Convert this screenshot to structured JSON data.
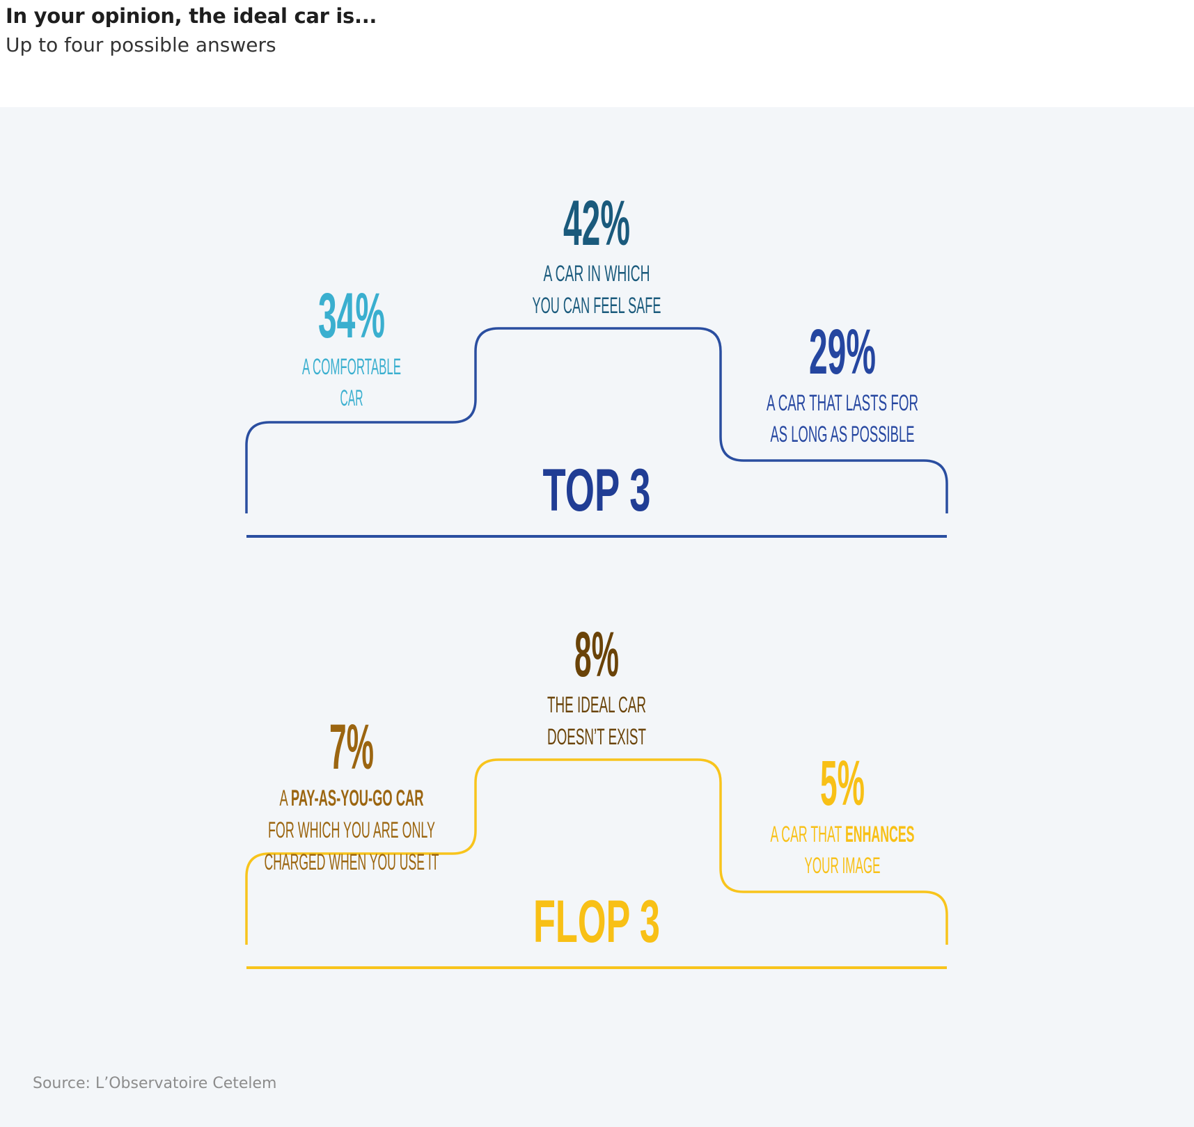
{
  "title": "In your opinion, the ideal car is...",
  "subtitle": "Up to four possible answers",
  "source": "Source: L’Observatoire Cetelem",
  "colors": {
    "top_stroke": "#2a4ea0",
    "top_heading": "#203d94",
    "top_first": "#1a5a7c",
    "top_second": "#3aafcf",
    "top_third": "#2546a0",
    "flop_stroke": "#f8c41c",
    "flop_heading": "#f8c016",
    "flop_first": "#6a4308",
    "flop_second": "#9b6510",
    "flop_third": "#f8c016"
  },
  "chart_data": [
    {
      "type": "podium",
      "heading": "TOP 3",
      "items": [
        {
          "rank": 1,
          "value": 42,
          "label": "42%",
          "text": [
            "A CAR IN WHICH",
            "YOU CAN FEEL SAFE"
          ]
        },
        {
          "rank": 2,
          "value": 34,
          "label": "34%",
          "text": [
            "A COMFORTABLE",
            "CAR"
          ]
        },
        {
          "rank": 3,
          "value": 29,
          "label": "29%",
          "text": [
            "A CAR THAT LASTS FOR",
            "AS LONG AS POSSIBLE"
          ]
        }
      ]
    },
    {
      "type": "podium",
      "heading": "FLOP 3",
      "items": [
        {
          "rank": 1,
          "value": 8,
          "label": "8%",
          "text": [
            "THE IDEAL CAR",
            "DOESN’T EXIST"
          ]
        },
        {
          "rank": 2,
          "value": 7,
          "label": "7%",
          "text": [
            "A PAY-AS-YOU-GO CAR",
            "FOR WHICH YOU ARE ONLY",
            "CHARGED WHEN YOU USE IT"
          ]
        },
        {
          "rank": 3,
          "value": 5,
          "label": "5%",
          "text": [
            "A CAR THAT ENHANCES",
            "YOUR IMAGE"
          ]
        }
      ]
    }
  ]
}
